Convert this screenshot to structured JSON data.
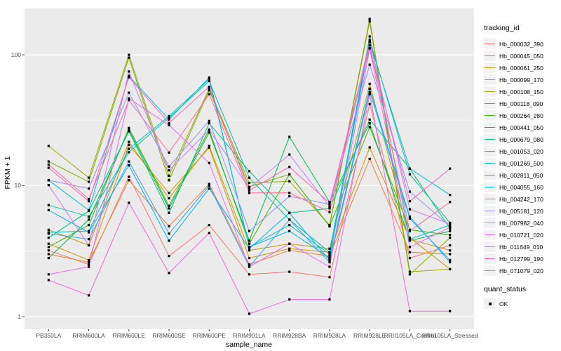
{
  "legend": {
    "tracking_title": "tracking_id",
    "quant_title": "quant_status",
    "quant_value": "OK"
  },
  "colors": {
    "panel_bg": "#EBEBEB",
    "grid_major": "#FFFFFF",
    "grid_minor": "#FFFFFF",
    "tick_text": "#4D4D4D",
    "tick_mark": "#333333",
    "point": "#000000",
    "legend_key_bg": "#F2F2F2"
  },
  "chart_data": {
    "type": "line",
    "title": "",
    "xlabel": "sample_name",
    "ylabel": "FPKM + 1",
    "y_scale": "log10",
    "ylim": [
      0.8,
      226
    ],
    "y_major_ticks": [
      1,
      10,
      100
    ],
    "y_minor_ticks": [
      3.162,
      31.62
    ],
    "grid": true,
    "legend_position": "right",
    "point_shape": "square",
    "quant_status": "OK",
    "categories": [
      "PB350LA",
      "RRIM600LA",
      "RRIM600LE",
      "RRIM600SE",
      "RRIM600PE",
      "RRIM901LA",
      "RRIM928BA",
      "RRIM928LA",
      "RRIM928LE",
      "RRII105LA_Control",
      "RRII105LA_Stressed"
    ],
    "series": [
      {
        "name": "Hb_000032_390",
        "color": "#F8766D",
        "values": [
          3.2,
          2.5,
          11.7,
          2.9,
          5.0,
          2.1,
          2.2,
          2.0,
          42,
          2.8,
          3.5
        ]
      },
      {
        "name": "Hb_000045_050",
        "color": "#EA8331",
        "values": [
          3.0,
          2.6,
          11.0,
          4.9,
          10.3,
          2.5,
          3.2,
          2.9,
          16,
          3.1,
          3.0
        ]
      },
      {
        "name": "Hb_000061_250",
        "color": "#D89000",
        "values": [
          3.6,
          2.7,
          20.5,
          8.8,
          19.5,
          2.8,
          3.3,
          3.1,
          19.6,
          3.9,
          3.2
        ]
      },
      {
        "name": "Hb_000099_170",
        "color": "#C09B00",
        "values": [
          4.6,
          3.5,
          21.6,
          8.0,
          20.1,
          3.2,
          3.6,
          3.3,
          60,
          4.0,
          2.3
        ]
      },
      {
        "name": "Hb_000108_150",
        "color": "#A3A500",
        "values": [
          20.1,
          11.5,
          100,
          11.9,
          55,
          10.5,
          10.8,
          5.0,
          188,
          2.2,
          2.3
        ]
      },
      {
        "name": "Hb_000118_090",
        "color": "#7CAE00",
        "values": [
          15.3,
          10.7,
          95,
          11.0,
          53.5,
          9.8,
          12.2,
          4.9,
          180,
          2.1,
          4.0
        ]
      },
      {
        "name": "Hb_000264_280",
        "color": "#39B600",
        "values": [
          3.4,
          5.0,
          27.6,
          7.0,
          26.7,
          3.6,
          12.2,
          4.9,
          28,
          4.6,
          4.2
        ]
      },
      {
        "name": "Hb_000441_050",
        "color": "#00BB4E",
        "values": [
          2.8,
          5.5,
          26.7,
          6.7,
          25.5,
          3.8,
          23.6,
          7.5,
          30,
          3.8,
          4.5
        ]
      },
      {
        "name": "Hb_000679_080",
        "color": "#00BF7D",
        "values": [
          4.0,
          6.4,
          26.0,
          6.2,
          30,
          12.9,
          6.2,
          6.7,
          32,
          13.5,
          4.7
        ]
      },
      {
        "name": "Hb_001053_020",
        "color": "#00C1A3",
        "values": [
          7.1,
          5.8,
          18.0,
          33,
          63,
          11.5,
          5.5,
          3.1,
          130,
          12.2,
          5.2
        ]
      },
      {
        "name": "Hb_001269_500",
        "color": "#00BFC4",
        "values": [
          4.4,
          4.5,
          19.1,
          34,
          65,
          3.4,
          5.0,
          3.0,
          138,
          3.9,
          5.0
        ]
      },
      {
        "name": "Hb_002811_050",
        "color": "#00BAE0",
        "values": [
          11.0,
          6.5,
          69,
          32,
          67,
          3.4,
          4.5,
          2.8,
          125,
          13.5,
          8.5
        ]
      },
      {
        "name": "Hb_004055_160",
        "color": "#00B0F6",
        "values": [
          6.5,
          4.4,
          14.3,
          3.8,
          9.5,
          3.3,
          6.2,
          2.7,
          55,
          5.8,
          2.6
        ]
      },
      {
        "name": "Hb_004242_170",
        "color": "#35A2FF",
        "values": [
          4.3,
          3.9,
          15.3,
          4.3,
          10.0,
          2.4,
          5.5,
          2.6,
          52,
          5.6,
          2.7
        ]
      },
      {
        "name": "Hb_005181_120",
        "color": "#9590FF",
        "values": [
          11.0,
          9.5,
          51.3,
          14.0,
          31.2,
          4.5,
          8.3,
          7.2,
          84,
          9.0,
          4.9
        ]
      },
      {
        "name": "Hb_007982_040",
        "color": "#C77CFF",
        "values": [
          10.1,
          3.5,
          74.5,
          13.1,
          26.7,
          9.6,
          17.3,
          6.9,
          125,
          6.6,
          5.1
        ]
      },
      {
        "name": "Hb_010721_020",
        "color": "#E76BF3",
        "values": [
          2.1,
          2.4,
          46.4,
          29,
          14.9,
          2.4,
          3.6,
          2.4,
          112,
          3.4,
          4.8
        ]
      },
      {
        "name": "Hb_011649_010",
        "color": "#FA62DB",
        "values": [
          1.9,
          1.45,
          7.4,
          2.15,
          4.35,
          1.05,
          1.35,
          1.35,
          50,
          1.1,
          1.1
        ]
      },
      {
        "name": "Hb_012799_190",
        "color": "#FF62BC",
        "values": [
          13.7,
          7.6,
          67.3,
          30.1,
          57,
          9.2,
          13.9,
          7.4,
          112,
          7.6,
          13.5
        ]
      },
      {
        "name": "Hb_071079_020",
        "color": "#FF6A98",
        "values": [
          14.5,
          7.9,
          45,
          17.9,
          50,
          8.8,
          8.8,
          6.3,
          118,
          4.5,
          7.5
        ]
      }
    ]
  }
}
